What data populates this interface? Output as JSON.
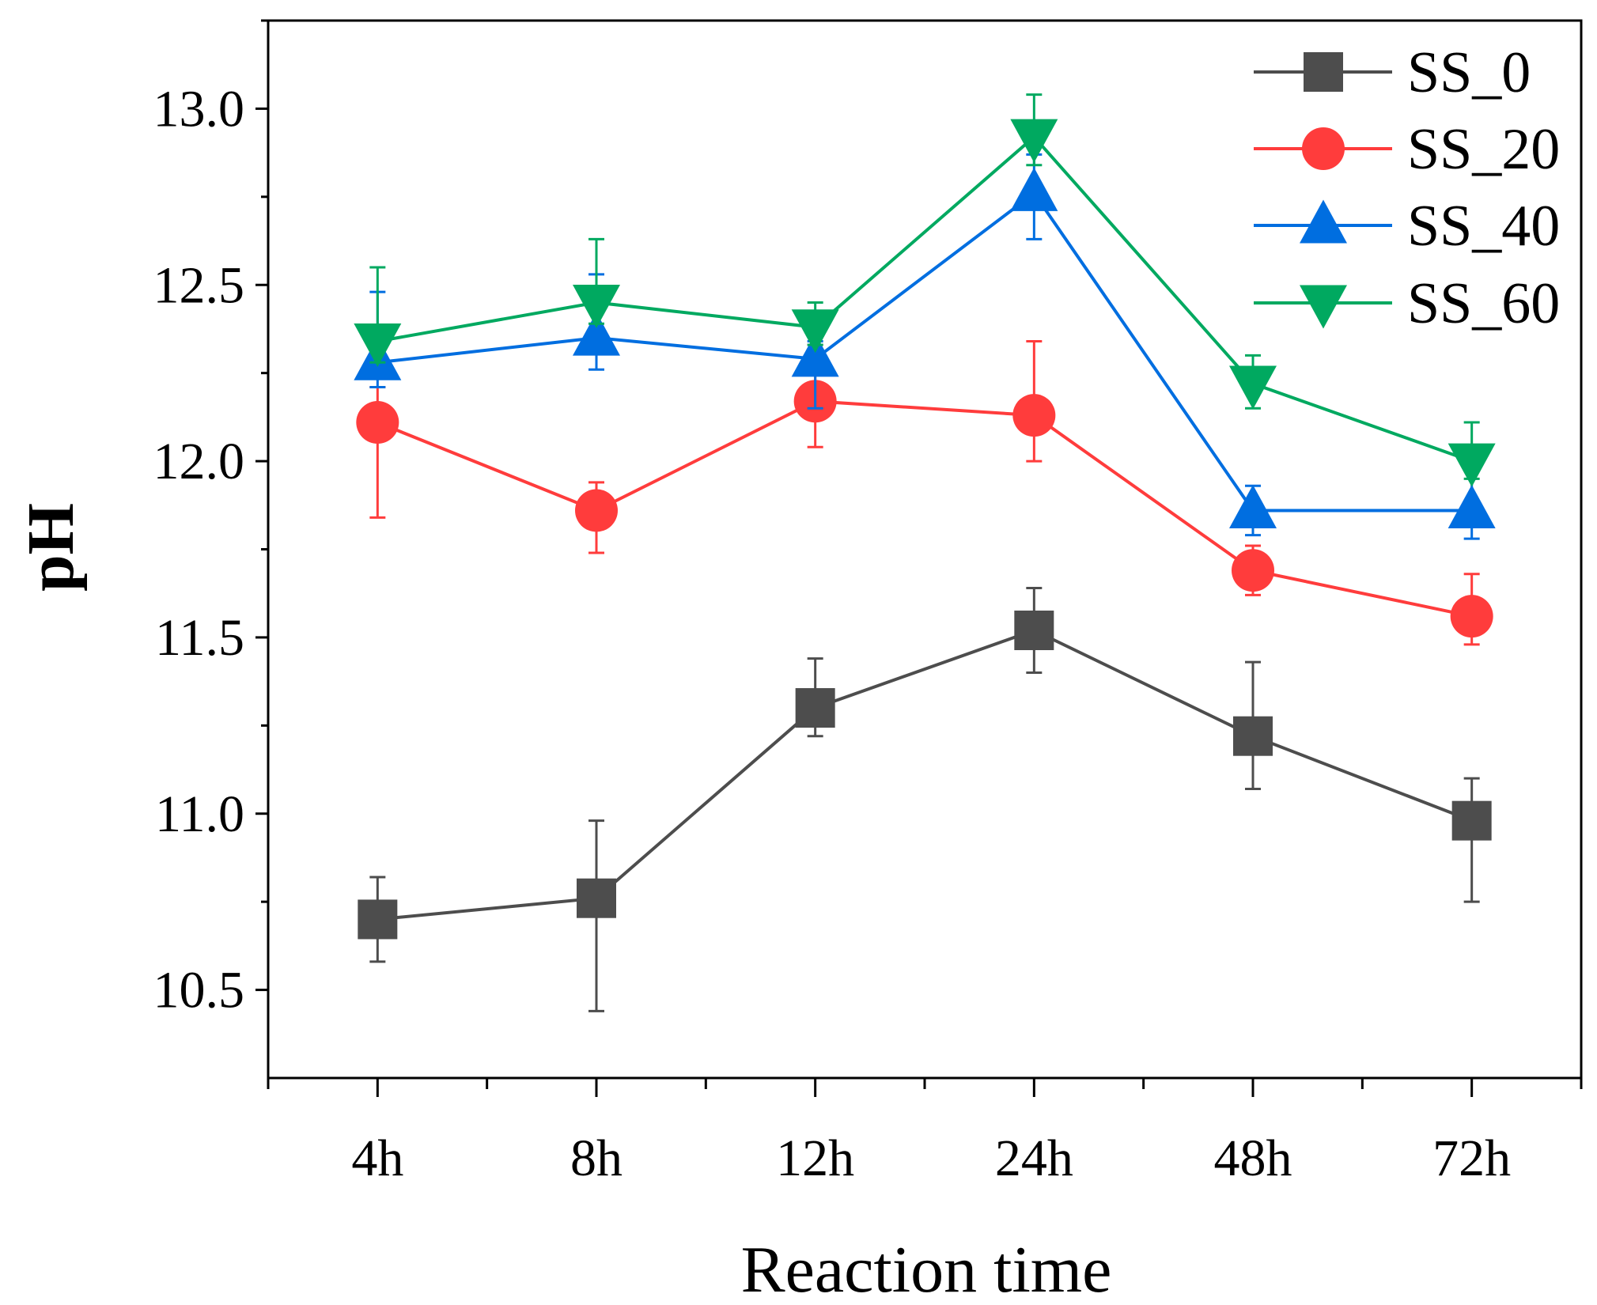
{
  "chart_data": {
    "type": "line",
    "title": "",
    "xlabel": "Reaction time",
    "ylabel": "pH",
    "categories": [
      "4h",
      "8h",
      "12h",
      "24h",
      "48h",
      "72h"
    ],
    "ylim": [
      10.25,
      13.25
    ],
    "yticks": [
      10.5,
      11.0,
      11.5,
      12.0,
      12.5,
      13.0
    ],
    "ytick_labels": [
      "10.5",
      "11.0",
      "11.5",
      "12.0",
      "12.5",
      "13.0"
    ],
    "grid": false,
    "legend_position": "top-right",
    "series": [
      {
        "name": "SS_0",
        "color": "#4d4d4d",
        "marker": "square",
        "values": [
          10.7,
          10.76,
          11.3,
          11.52,
          11.22,
          10.98
        ],
        "err_low": [
          0.12,
          0.32,
          0.08,
          0.12,
          0.15,
          0.23
        ],
        "err_high": [
          0.12,
          0.22,
          0.14,
          0.12,
          0.21,
          0.12
        ]
      },
      {
        "name": "SS_20",
        "color": "#ff3c3c",
        "marker": "circle",
        "values": [
          12.11,
          11.86,
          12.17,
          12.13,
          11.69,
          11.56
        ],
        "err_low": [
          0.27,
          0.12,
          0.13,
          0.13,
          0.07,
          0.08
        ],
        "err_high": [
          0.1,
          0.08,
          0.16,
          0.21,
          0.07,
          0.12
        ]
      },
      {
        "name": "SS_40",
        "color": "#006ee0",
        "marker": "triangle-up",
        "values": [
          12.28,
          12.35,
          12.29,
          12.76,
          11.86,
          11.86
        ],
        "err_low": [
          0.07,
          0.09,
          0.14,
          0.13,
          0.07,
          0.08
        ],
        "err_high": [
          0.2,
          0.18,
          0.05,
          0.11,
          0.07,
          0.12
        ]
      },
      {
        "name": "SS_60",
        "color": "#00a960",
        "marker": "triangle-down",
        "values": [
          12.34,
          12.45,
          12.38,
          12.92,
          12.22,
          12.0
        ],
        "err_low": [
          0.06,
          0.06,
          0.05,
          0.08,
          0.07,
          0.05
        ],
        "err_high": [
          0.21,
          0.18,
          0.07,
          0.12,
          0.08,
          0.11
        ]
      }
    ]
  }
}
